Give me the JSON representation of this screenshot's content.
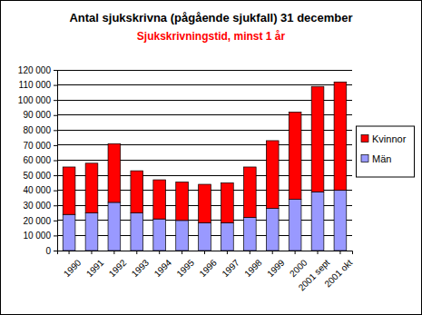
{
  "chart_data": {
    "type": "bar",
    "title": "Antal sjukskrivna (pågående sjukfall) 31 december",
    "subtitle": "Sjukskrivningstid, minst 1 år",
    "categories": [
      "1990",
      "1991",
      "1992",
      "1993",
      "1994",
      "1995",
      "1996",
      "1997",
      "1998",
      "1999",
      "2000",
      "2001 sept",
      "2001 okt"
    ],
    "series": [
      {
        "name": "Män",
        "color": "#9999ff",
        "values": [
          24000,
          25000,
          32000,
          25000,
          21000,
          20000,
          18500,
          18500,
          22000,
          28000,
          34000,
          39000,
          40000
        ]
      },
      {
        "name": "Kvinnor",
        "color": "#ff0000",
        "values": [
          31500,
          33000,
          39000,
          28000,
          26000,
          25500,
          25500,
          26500,
          33500,
          45000,
          58000,
          70000,
          72000
        ]
      }
    ],
    "stacked": true,
    "grid": true,
    "legend": "right",
    "ylim": [
      0,
      120000
    ],
    "yticks": [
      {
        "value": 0,
        "label": "0"
      },
      {
        "value": 10000,
        "label": "10 000"
      },
      {
        "value": 20000,
        "label": "20 000"
      },
      {
        "value": 30000,
        "label": "30 000"
      },
      {
        "value": 40000,
        "label": "40 000"
      },
      {
        "value": 50000,
        "label": "50 000"
      },
      {
        "value": 60000,
        "label": "60 000"
      },
      {
        "value": 70000,
        "label": "70 000"
      },
      {
        "value": 80000,
        "label": "80 000"
      },
      {
        "value": 90000,
        "label": "90 000"
      },
      {
        "value": 100000,
        "label": "100 000"
      },
      {
        "value": 110000,
        "label": "110 000"
      },
      {
        "value": 120000,
        "label": "120 000"
      }
    ]
  }
}
